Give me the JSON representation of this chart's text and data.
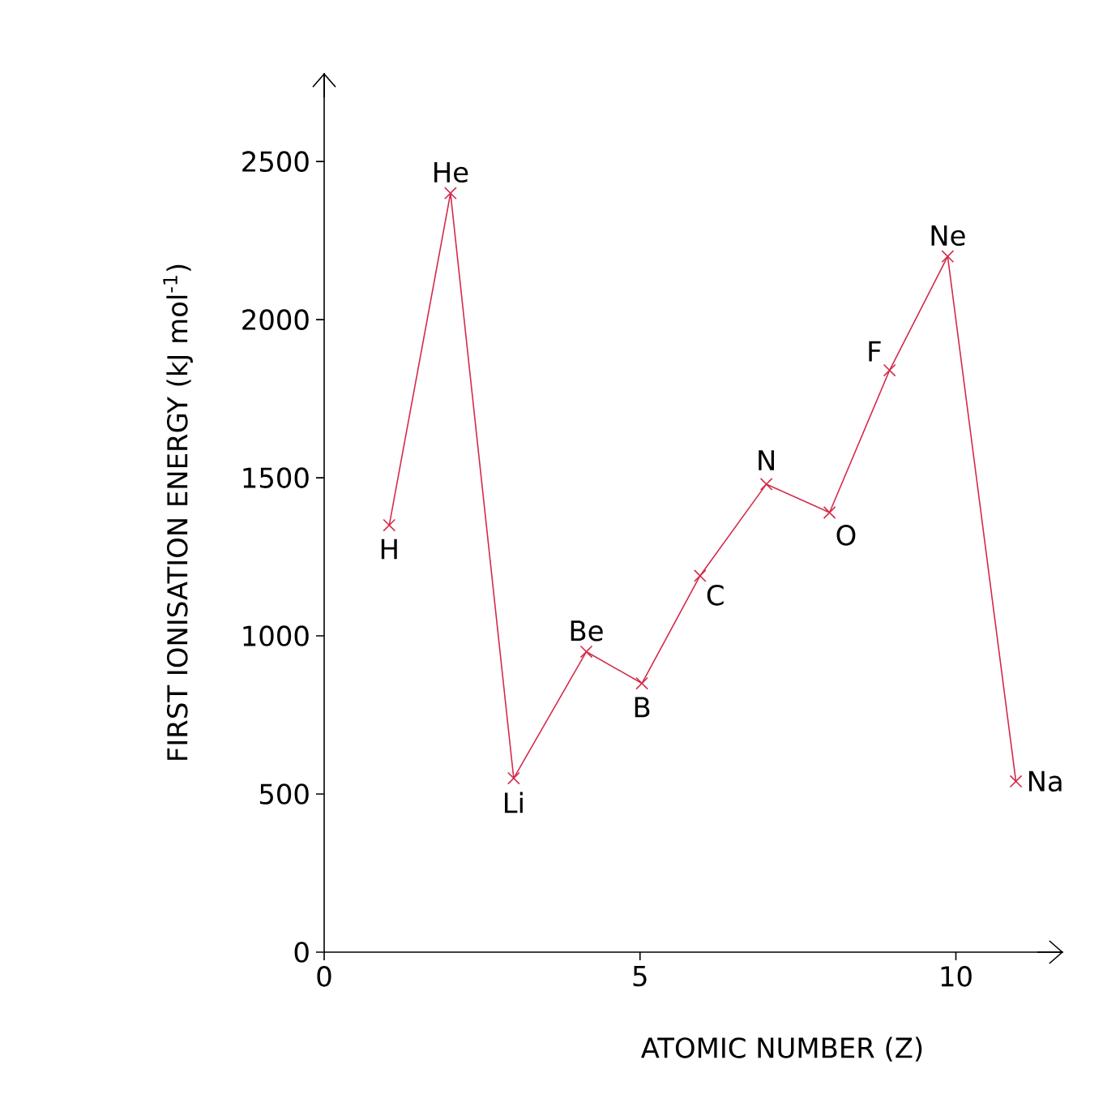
{
  "chart_data": {
    "type": "line",
    "xlabel": "ATOMIC NUMBER (Z)",
    "ylabel": "FIRST IONISATION ENERGY (kJ mol$^{-1}$)",
    "x": [
      1.03,
      2,
      3,
      4.15,
      5.03,
      5.95,
      7,
      8,
      8.95,
      9.87,
      10.95
    ],
    "series": [
      {
        "color": "#d42a4a",
        "values": [
          1350,
          2400,
          550,
          950,
          850,
          1190,
          1480,
          1390,
          1840,
          2200,
          540
        ]
      }
    ],
    "xlim": [
      0,
      11.7
    ],
    "ylim": [
      0,
      2780
    ],
    "xticks": [
      0,
      5,
      10
    ],
    "yticks": [
      0,
      500,
      1000,
      1500,
      2000,
      2500
    ],
    "marker": "cross",
    "line_style": "solid",
    "grid": false,
    "annotations": [
      {
        "text": "H",
        "x": 1.03,
        "y": 1350
      },
      {
        "text": "He",
        "x": 2,
        "y": 2400
      },
      {
        "text": "Li",
        "x": 3,
        "y": 550
      },
      {
        "text": "Be",
        "x": 4.15,
        "y": 950
      },
      {
        "text": "B",
        "x": 5.03,
        "y": 850
      },
      {
        "text": "C",
        "x": 5.95,
        "y": 1190
      },
      {
        "text": "N",
        "x": 7,
        "y": 1480
      },
      {
        "text": "O",
        "x": 8,
        "y": 1390
      },
      {
        "text": "F",
        "x": 8.95,
        "y": 1840
      },
      {
        "text": "Ne",
        "x": 9.87,
        "y": 2200
      },
      {
        "text": "Na",
        "x": 10.95,
        "y": 540
      }
    ]
  }
}
